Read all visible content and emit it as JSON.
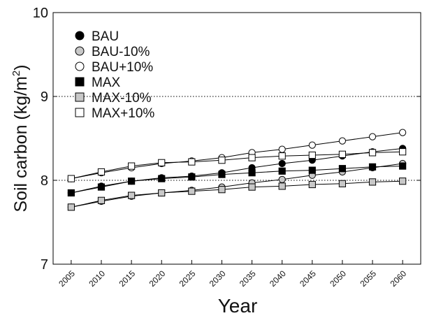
{
  "chart_data": {
    "type": "line",
    "xlabel": "Year",
    "ylabel": "Soil carbon (kg/m",
    "ylabel_superscript": "2",
    "ylabel_suffix": ")",
    "x": [
      2005,
      2010,
      2015,
      2020,
      2025,
      2030,
      2035,
      2040,
      2045,
      2050,
      2055,
      2060
    ],
    "xlim": [
      2002,
      2063
    ],
    "ylim": [
      7,
      10
    ],
    "yticks": [
      7,
      8,
      9,
      10
    ],
    "reference_lines": [
      8,
      9
    ],
    "legend_position": "top-left",
    "series": [
      {
        "name": "BAU",
        "marker": "circle",
        "fill": "#000000",
        "values": [
          7.85,
          7.93,
          7.99,
          8.03,
          8.05,
          8.09,
          8.15,
          8.2,
          8.24,
          8.29,
          8.34,
          8.38
        ]
      },
      {
        "name": "BAU-10%",
        "marker": "circle",
        "fill": "#c8c8c8",
        "values": [
          7.68,
          7.75,
          7.81,
          7.85,
          7.88,
          7.92,
          7.97,
          8.01,
          8.06,
          8.1,
          8.15,
          8.2
        ]
      },
      {
        "name": "BAU+10%",
        "marker": "circle",
        "fill": "#ffffff",
        "values": [
          8.02,
          8.09,
          8.15,
          8.2,
          8.23,
          8.27,
          8.33,
          8.37,
          8.42,
          8.47,
          8.52,
          8.57
        ]
      },
      {
        "name": "MAX",
        "marker": "square",
        "fill": "#000000",
        "values": [
          7.85,
          7.92,
          7.99,
          8.02,
          8.04,
          8.07,
          8.09,
          8.11,
          8.12,
          8.14,
          8.16,
          8.17
        ]
      },
      {
        "name": "MAX-10%",
        "marker": "square",
        "fill": "#c8c8c8",
        "values": [
          7.68,
          7.76,
          7.82,
          7.85,
          7.87,
          7.89,
          7.92,
          7.93,
          7.95,
          7.96,
          7.98,
          7.99
        ]
      },
      {
        "name": "MAX+10%",
        "marker": "square",
        "fill": "#ffffff",
        "values": [
          8.02,
          8.1,
          8.17,
          8.21,
          8.22,
          8.24,
          8.27,
          8.29,
          8.3,
          8.31,
          8.33,
          8.34
        ]
      }
    ]
  }
}
